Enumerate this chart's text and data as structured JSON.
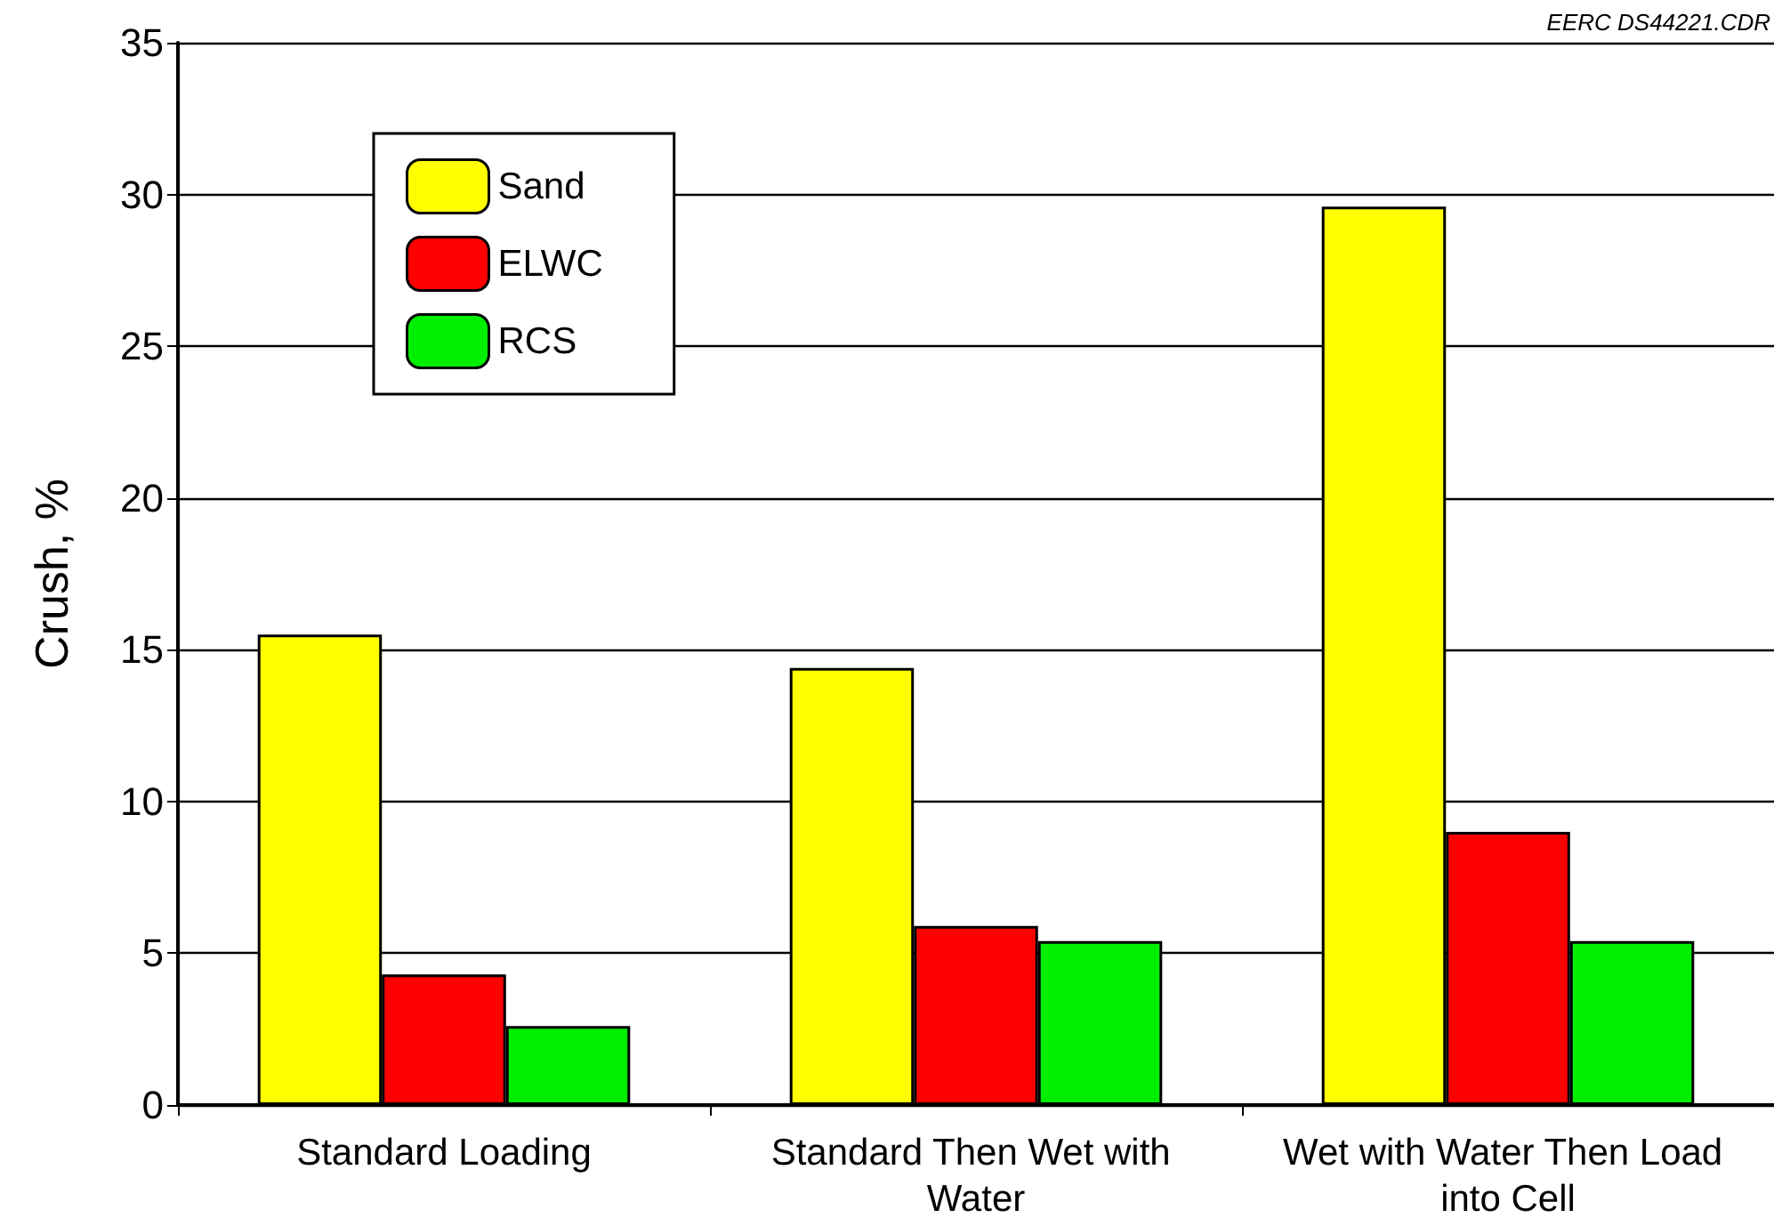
{
  "chart_data": {
    "type": "bar",
    "ylabel": "Crush, %",
    "annotations": [
      "EERC DS44221.CDR"
    ],
    "categories": [
      "Standard Loading",
      "Standard Then Wet with Water",
      "Wet with Water Then Load into Cell"
    ],
    "series": [
      {
        "name": "Sand",
        "color": "#ffff00",
        "values": [
          15.5,
          14.4,
          29.6
        ]
      },
      {
        "name": "ELWC",
        "color": "#ff0000",
        "values": [
          4.3,
          5.9,
          9.0
        ]
      },
      {
        "name": "RCS",
        "color": "#00ee00",
        "values": [
          2.6,
          5.4,
          5.4
        ]
      }
    ],
    "ylim": [
      0,
      35
    ],
    "yticks": [
      0,
      5,
      10,
      15,
      20,
      25,
      30,
      35
    ],
    "grid": "y",
    "legend": "top left"
  }
}
